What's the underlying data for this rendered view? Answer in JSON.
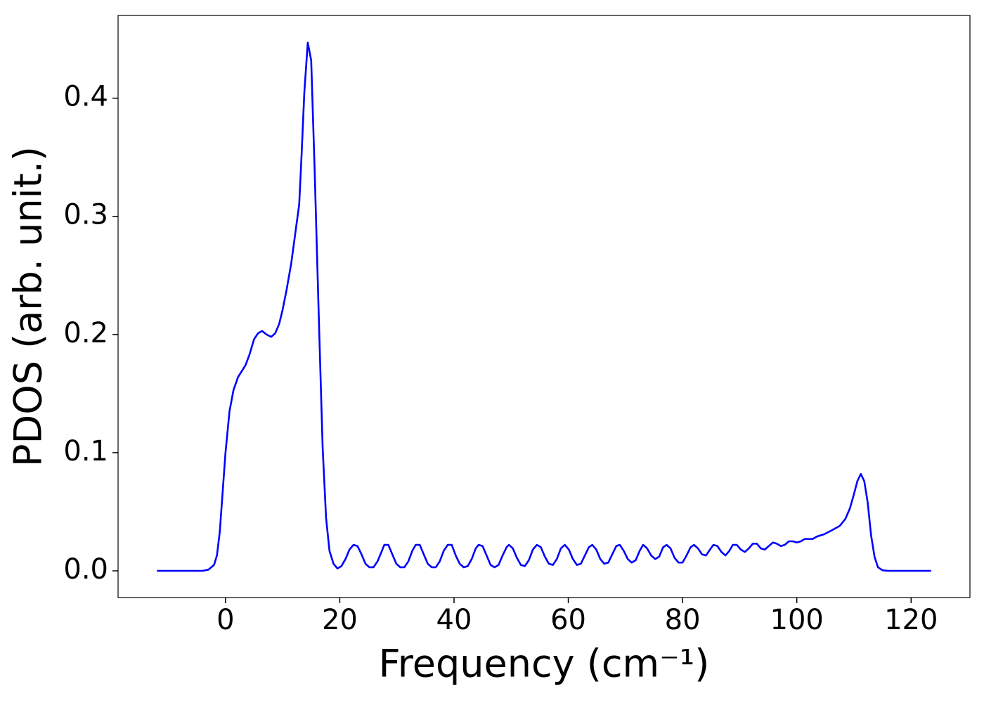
{
  "chart_data": {
    "type": "line",
    "xlabel": "Frequency (cm⁻¹)",
    "ylabel": "PDOS (arb. unit.)",
    "xlim": [
      -18.8,
      130.3
    ],
    "ylim": [
      -0.0226,
      0.47
    ],
    "xticks": [
      0,
      20,
      40,
      60,
      80,
      100,
      120
    ],
    "yticks": [
      {
        "value": 0,
        "label": "0.0"
      },
      0.1,
      0.2,
      0.3,
      0.4
    ],
    "grid": false,
    "series": [
      {
        "color": "#0000ff",
        "x": [
          -12,
          -4,
          -3,
          -2,
          -1.5,
          -1,
          0,
          0.7,
          1.4,
          2.2,
          3.5,
          4.2,
          5,
          5.7,
          6.4,
          7.2,
          8,
          8.7,
          9.4,
          10,
          10.7,
          11.5,
          12.2,
          12.9,
          13.3,
          13.8,
          14.4,
          15,
          15.6,
          16.3,
          17,
          17.6,
          18.2,
          18.9,
          19.6,
          20.3,
          21,
          21.7,
          22.4,
          23.1,
          23.8,
          24.5,
          25.2,
          25.9,
          26.6,
          27.3,
          27.8,
          28.5,
          29.2,
          29.9,
          30.6,
          31.3,
          32,
          32.7,
          33.3,
          34,
          34.7,
          35.4,
          36.1,
          36.8,
          37.5,
          38.2,
          38.9,
          39.6,
          40.3,
          41,
          41.7,
          42.4,
          43.1,
          43.8,
          44.3,
          45,
          45.7,
          46.4,
          47.1,
          47.8,
          48.5,
          49.2,
          49.6,
          50.3,
          51,
          51.7,
          52.4,
          53.1,
          53.8,
          54.5,
          55.2,
          55.9,
          56.6,
          57.3,
          58,
          58.7,
          59.4,
          60.1,
          60.8,
          61.5,
          62.2,
          62.9,
          63.6,
          64.2,
          64.9,
          65.6,
          66.3,
          67,
          67.7,
          68.4,
          69,
          69.7,
          70.4,
          71.1,
          71.8,
          72.5,
          73.1,
          73.8,
          74.5,
          75.2,
          75.9,
          76.6,
          77.2,
          77.9,
          78.6,
          79.3,
          80,
          80.7,
          81.4,
          82,
          82.7,
          83.4,
          84.1,
          84.8,
          85.4,
          86.1,
          86.8,
          87.5,
          88.2,
          88.8,
          89.5,
          90.2,
          90.9,
          91.6,
          92.3,
          93,
          93.7,
          94.4,
          95.1,
          95.8,
          96.5,
          97.2,
          97.9,
          98.6,
          99.3,
          100,
          100.7,
          101.4,
          102.8,
          103.5,
          104.8,
          106,
          107.5,
          108.5,
          109.3,
          110,
          110.6,
          111.2,
          111.8,
          112.4,
          113,
          113.6,
          114.2,
          115,
          116,
          123.5
        ],
        "values": [
          0,
          0,
          0.001,
          0.005,
          0.013,
          0.033,
          0.1,
          0.135,
          0.153,
          0.164,
          0.174,
          0.183,
          0.196,
          0.201,
          0.203,
          0.2,
          0.198,
          0.201,
          0.209,
          0.221,
          0.238,
          0.26,
          0.285,
          0.31,
          0.35,
          0.405,
          0.447,
          0.432,
          0.34,
          0.22,
          0.105,
          0.045,
          0.017,
          0.006,
          0.002,
          0.004,
          0.01,
          0.018,
          0.022,
          0.021,
          0.014,
          0.006,
          0.003,
          0.003,
          0.008,
          0.016,
          0.022,
          0.022,
          0.014,
          0.006,
          0.003,
          0.003,
          0.008,
          0.017,
          0.022,
          0.022,
          0.014,
          0.006,
          0.003,
          0.003,
          0.008,
          0.017,
          0.022,
          0.022,
          0.013,
          0.006,
          0.003,
          0.004,
          0.01,
          0.019,
          0.022,
          0.021,
          0.013,
          0.005,
          0.003,
          0.005,
          0.013,
          0.02,
          0.022,
          0.019,
          0.011,
          0.005,
          0.004,
          0.009,
          0.018,
          0.022,
          0.02,
          0.012,
          0.006,
          0.005,
          0.01,
          0.019,
          0.022,
          0.018,
          0.01,
          0.005,
          0.006,
          0.013,
          0.02,
          0.022,
          0.018,
          0.01,
          0.006,
          0.007,
          0.014,
          0.021,
          0.022,
          0.017,
          0.01,
          0.007,
          0.009,
          0.017,
          0.022,
          0.019,
          0.013,
          0.01,
          0.012,
          0.02,
          0.022,
          0.019,
          0.011,
          0.007,
          0.007,
          0.013,
          0.02,
          0.022,
          0.019,
          0.014,
          0.013,
          0.018,
          0.022,
          0.021,
          0.016,
          0.013,
          0.017,
          0.022,
          0.022,
          0.018,
          0.016,
          0.019,
          0.023,
          0.023,
          0.019,
          0.018,
          0.021,
          0.024,
          0.023,
          0.021,
          0.022,
          0.025,
          0.025,
          0.024,
          0.025,
          0.027,
          0.027,
          0.029,
          0.031,
          0.034,
          0.038,
          0.044,
          0.053,
          0.065,
          0.076,
          0.082,
          0.076,
          0.058,
          0.03,
          0.012,
          0.003,
          0.0005,
          0,
          0
        ]
      }
    ]
  }
}
